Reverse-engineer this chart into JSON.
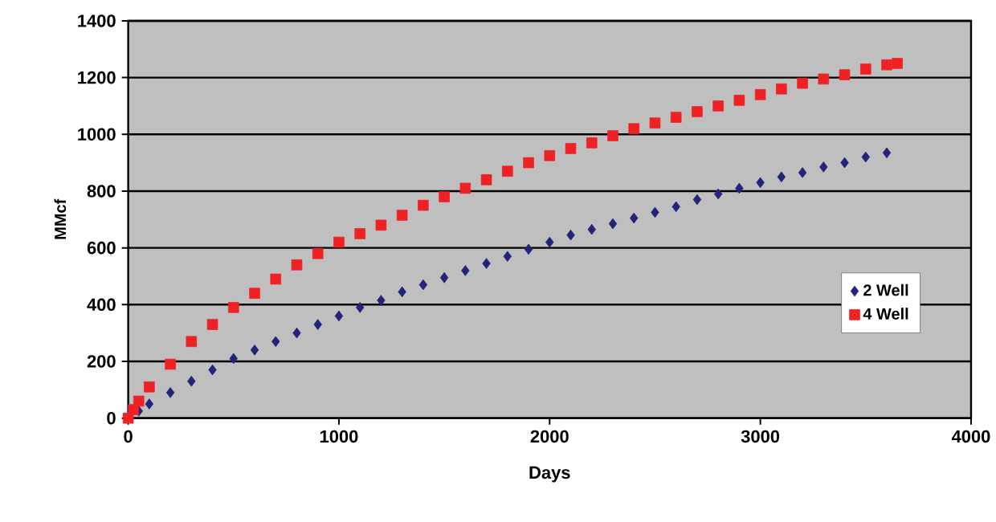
{
  "chart_data": {
    "type": "scatter",
    "xlabel": "Days",
    "ylabel": "MMcf",
    "xlim": [
      0,
      4000
    ],
    "ylim": [
      0,
      1400
    ],
    "xticks": [
      0,
      1000,
      2000,
      3000,
      4000
    ],
    "yticks": [
      0,
      200,
      400,
      600,
      800,
      1000,
      1200,
      1400
    ],
    "grid": "y",
    "legend": "right",
    "series": [
      {
        "name": "2 Well",
        "color": "#23237a",
        "marker": "diamond",
        "x": [
          50,
          100,
          200,
          300,
          400,
          500,
          600,
          700,
          800,
          900,
          1000,
          1100,
          1200,
          1300,
          1400,
          1500,
          1600,
          1700,
          1800,
          1900,
          2000,
          2100,
          2200,
          2300,
          2400,
          2500,
          2600,
          2700,
          2800,
          2900,
          3000,
          3100,
          3200,
          3300,
          3400,
          3500,
          3600
        ],
        "values": [
          25,
          50,
          90,
          130,
          170,
          210,
          240,
          270,
          300,
          330,
          360,
          390,
          415,
          445,
          470,
          495,
          520,
          545,
          570,
          595,
          620,
          645,
          665,
          685,
          705,
          725,
          745,
          770,
          790,
          810,
          830,
          850,
          865,
          885,
          900,
          920,
          935
        ]
      },
      {
        "name": "4 Well",
        "color": "#ee2224",
        "marker": "square",
        "x": [
          0,
          25,
          50,
          100,
          200,
          300,
          400,
          500,
          600,
          700,
          800,
          900,
          1000,
          1100,
          1200,
          1300,
          1400,
          1500,
          1600,
          1700,
          1800,
          1900,
          2000,
          2100,
          2200,
          2300,
          2400,
          2500,
          2600,
          2700,
          2800,
          2900,
          3000,
          3100,
          3200,
          3300,
          3400,
          3500,
          3600,
          3650
        ],
        "values": [
          0,
          30,
          60,
          110,
          190,
          270,
          330,
          390,
          440,
          490,
          540,
          580,
          620,
          650,
          680,
          715,
          750,
          780,
          810,
          840,
          870,
          900,
          925,
          950,
          970,
          995,
          1020,
          1040,
          1060,
          1080,
          1100,
          1120,
          1140,
          1160,
          1180,
          1195,
          1210,
          1230,
          1245,
          1250
        ]
      }
    ]
  }
}
